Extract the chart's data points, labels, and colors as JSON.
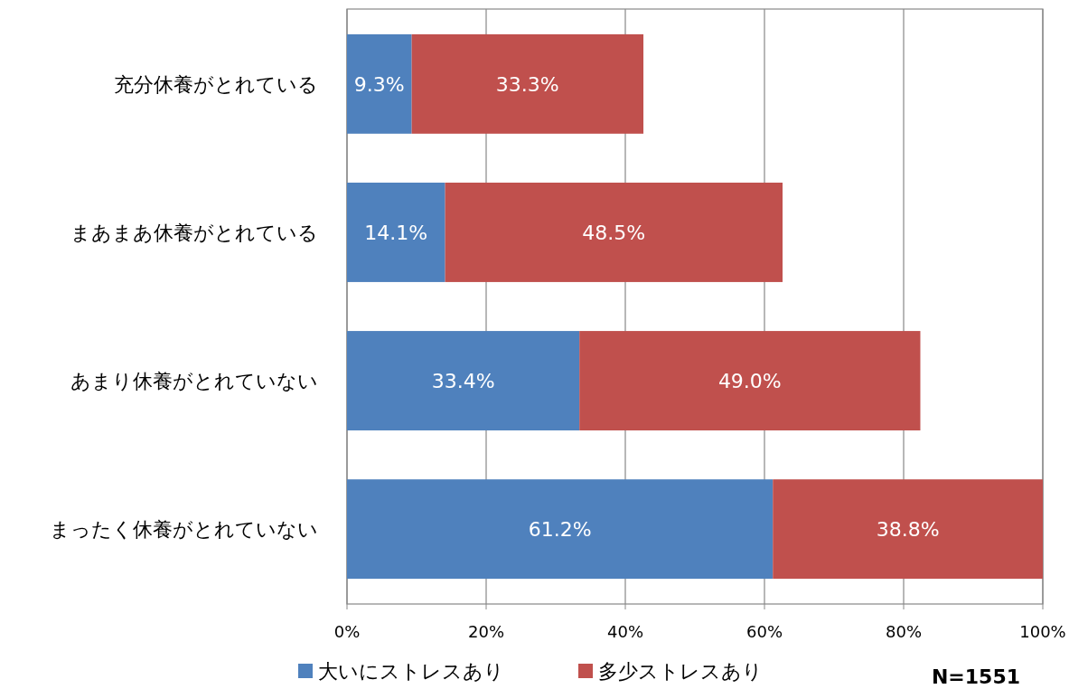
{
  "chart_data": {
    "type": "bar",
    "orientation": "horizontal",
    "stacked": true,
    "categories": [
      "充分休養がとれている",
      "まあまあ休養がとれている",
      "あまり休養がとれていない",
      "まったく休養がとれていない"
    ],
    "series": [
      {
        "name": "大いにストレスあり",
        "color": "#4f81bd",
        "values": [
          9.3,
          14.1,
          33.4,
          61.2
        ],
        "value_labels": [
          "9.3%",
          "14.1%",
          "33.4%",
          "61.2%"
        ]
      },
      {
        "name": "多少ストレスあり",
        "color": "#c0504d",
        "values": [
          33.3,
          48.5,
          49.0,
          38.8
        ],
        "value_labels": [
          "33.3%",
          "48.5%",
          "49.0%",
          "38.8%"
        ]
      }
    ],
    "xlim": [
      0,
      100
    ],
    "xticks": [
      {
        "value": 0,
        "label": "0%"
      },
      {
        "value": 20,
        "label": "20%"
      },
      {
        "value": 40,
        "label": "40%"
      },
      {
        "value": 60,
        "label": "60%"
      },
      {
        "value": 80,
        "label": "80%"
      },
      {
        "value": 100,
        "label": "100%"
      }
    ],
    "grid": "x",
    "legend": "bottom",
    "annotations": [
      "N=1551"
    ]
  }
}
